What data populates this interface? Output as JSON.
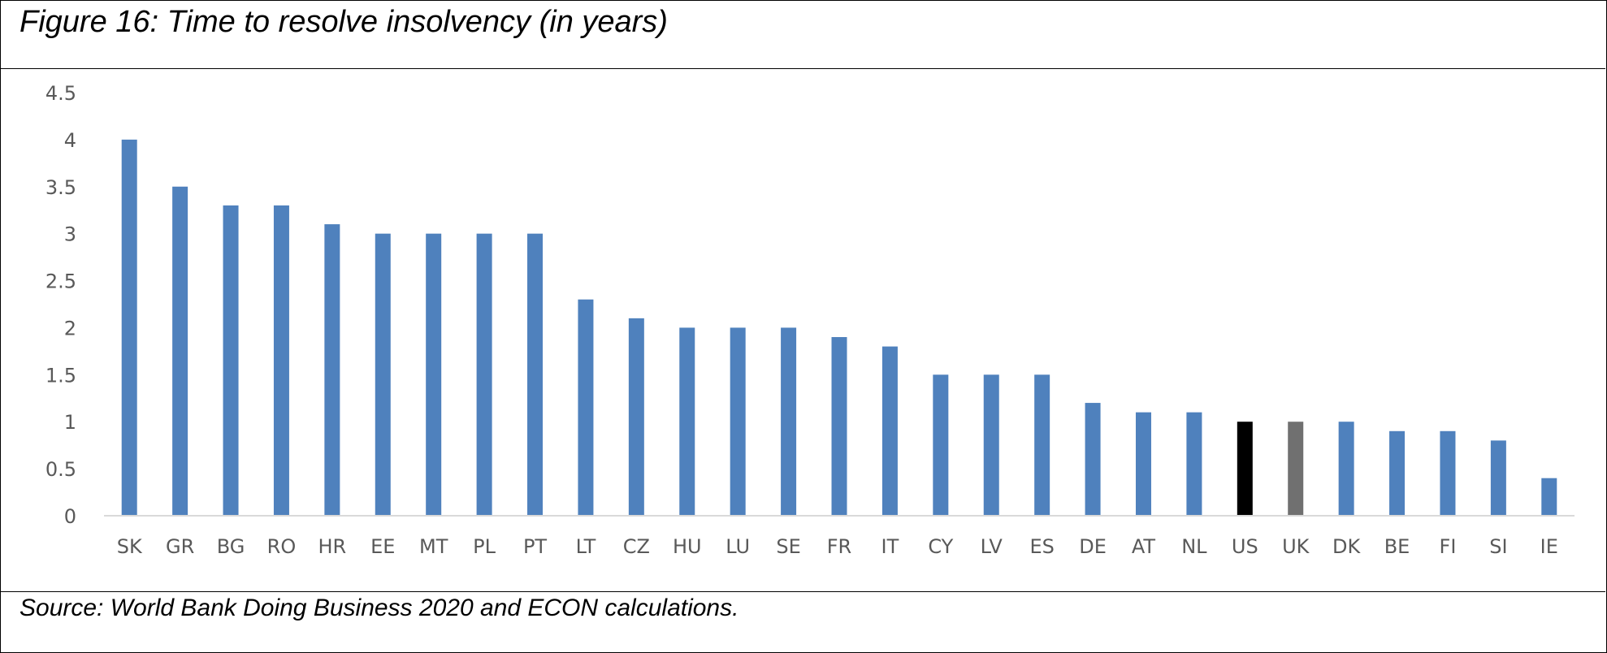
{
  "figure": {
    "title": "Figure 16: Time to resolve insolvency (in years)",
    "source": "Source: World Bank Doing Business 2020 and ECON calculations."
  },
  "chart_data": {
    "type": "bar",
    "title": "Figure 16: Time to resolve insolvency (in years)",
    "xlabel": "",
    "ylabel": "",
    "ylim": [
      0,
      4.5
    ],
    "yticks": [
      "0",
      "0.5",
      "1",
      "1.5",
      "2",
      "2.5",
      "3",
      "3.5",
      "4",
      "4.5"
    ],
    "grid": false,
    "legend": "none",
    "categories": [
      "SK",
      "GR",
      "BG",
      "RO",
      "HR",
      "EE",
      "MT",
      "PL",
      "PT",
      "LT",
      "CZ",
      "HU",
      "LU",
      "SE",
      "FR",
      "IT",
      "CY",
      "LV",
      "ES",
      "DE",
      "AT",
      "NL",
      "US",
      "UK",
      "DK",
      "BE",
      "FI",
      "SI",
      "IE"
    ],
    "values": [
      4,
      3.5,
      3.3,
      3.3,
      3.1,
      3,
      3,
      3,
      3,
      2.3,
      2.1,
      2,
      2,
      2,
      1.9,
      1.8,
      1.5,
      1.5,
      1.5,
      1.2,
      1.1,
      1.1,
      1,
      1,
      1,
      0.9,
      0.9,
      0.8,
      0.4
    ],
    "colors": {
      "default": "#4F81BD",
      "US": "#000000",
      "UK": "#707070"
    }
  }
}
